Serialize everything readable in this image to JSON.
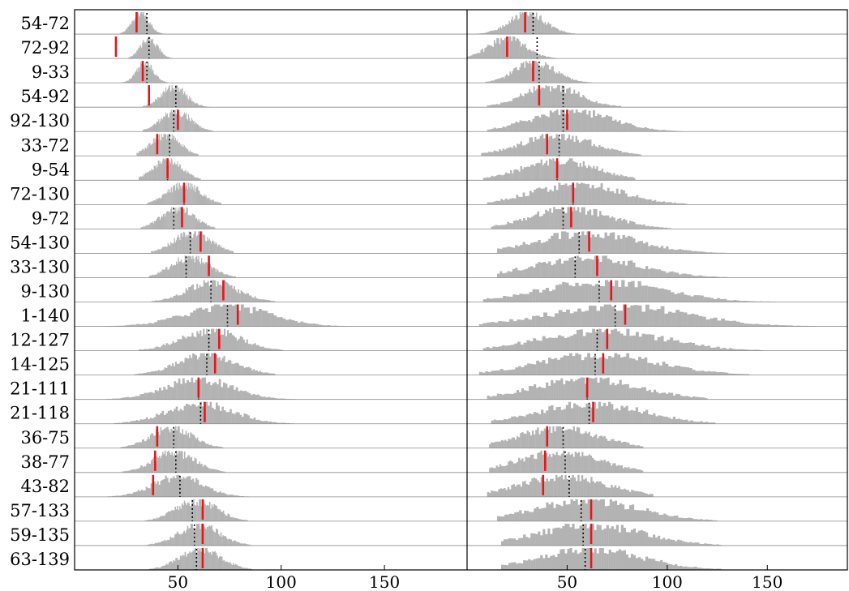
{
  "chart_data": {
    "type": "histogram-ridgeline",
    "row_labels": [
      "54-72",
      "72-92",
      "9-33",
      "54-92",
      "92-130",
      "33-72",
      "9-54",
      "72-130",
      "9-72",
      "54-130",
      "33-130",
      "9-130",
      "1-140",
      "12-127",
      "14-125",
      "21-111",
      "21-118",
      "36-75",
      "38-77",
      "43-82",
      "57-133",
      "59-135",
      "63-139"
    ],
    "xticks": [
      50,
      100,
      150
    ],
    "xlim": [
      0,
      190
    ],
    "panels": [
      {
        "rows": [
          {
            "label": "54-72",
            "center": 32,
            "spread": 4,
            "left": 10,
            "right": 15,
            "dotted": 35,
            "red": 30
          },
          {
            "label": "72-92",
            "center": 36,
            "spread": 4,
            "left": 10,
            "right": 15,
            "dotted": 36,
            "red": 20
          },
          {
            "label": "9-33",
            "center": 34,
            "spread": 4,
            "left": 12,
            "right": 14,
            "dotted": 35,
            "red": 33
          },
          {
            "label": "54-92",
            "center": 48,
            "spread": 6,
            "left": 15,
            "right": 18,
            "dotted": 49,
            "red": 36
          },
          {
            "label": "92-130",
            "center": 49,
            "spread": 7,
            "left": 16,
            "right": 18,
            "dotted": 48,
            "red": 50
          },
          {
            "label": "33-72",
            "center": 44,
            "spread": 7,
            "left": 14,
            "right": 16,
            "dotted": 46,
            "red": 40
          },
          {
            "label": "9-54",
            "center": 45,
            "spread": 7,
            "left": 14,
            "right": 16,
            "dotted": 45,
            "red": 45
          },
          {
            "label": "72-130",
            "center": 53,
            "spread": 8,
            "left": 18,
            "right": 18,
            "dotted": 53,
            "red": 53
          },
          {
            "label": "9-72",
            "center": 50,
            "spread": 8,
            "left": 18,
            "right": 18,
            "dotted": 48,
            "red": 52
          },
          {
            "label": "54-130",
            "center": 57,
            "spread": 9,
            "left": 20,
            "right": 20,
            "dotted": 56,
            "red": 61
          },
          {
            "label": "33-130",
            "center": 56,
            "spread": 9,
            "left": 20,
            "right": 22,
            "dotted": 54,
            "red": 65
          },
          {
            "label": "9-130",
            "center": 67,
            "spread": 12,
            "left": 30,
            "right": 30,
            "dotted": 66,
            "red": 72
          },
          {
            "label": "1-140",
            "center": 74,
            "spread": 20,
            "left": 60,
            "right": 70,
            "dotted": 74,
            "red": 79
          },
          {
            "label": "12-127",
            "center": 66,
            "spread": 14,
            "left": 35,
            "right": 35,
            "dotted": 65,
            "red": 70
          },
          {
            "label": "14-125",
            "center": 64,
            "spread": 14,
            "left": 35,
            "right": 33,
            "dotted": 64,
            "red": 68
          },
          {
            "label": "21-111",
            "center": 60,
            "spread": 16,
            "left": 45,
            "right": 48,
            "dotted": 60,
            "red": 60
          },
          {
            "label": "21-118",
            "center": 61,
            "spread": 16,
            "left": 42,
            "right": 45,
            "dotted": 61,
            "red": 63
          },
          {
            "label": "36-75",
            "center": 47,
            "spread": 10,
            "left": 25,
            "right": 25,
            "dotted": 48,
            "red": 40
          },
          {
            "label": "38-77",
            "center": 48,
            "spread": 10,
            "left": 25,
            "right": 25,
            "dotted": 49,
            "red": 39
          },
          {
            "label": "43-82",
            "center": 50,
            "spread": 12,
            "left": 35,
            "right": 35,
            "dotted": 51,
            "red": 38
          },
          {
            "label": "57-133",
            "center": 59,
            "spread": 10,
            "left": 25,
            "right": 25,
            "dotted": 57,
            "red": 62
          },
          {
            "label": "59-135",
            "center": 60,
            "spread": 10,
            "left": 25,
            "right": 25,
            "dotted": 58,
            "red": 62
          },
          {
            "label": "63-139",
            "center": 61,
            "spread": 10,
            "left": 25,
            "right": 25,
            "dotted": 59,
            "red": 62
          }
        ]
      },
      {
        "rows": [
          {
            "label": "54-72",
            "center": 30,
            "spread": 9,
            "left": 25,
            "right": 24,
            "dotted": 33,
            "red": 29
          },
          {
            "label": "72-92",
            "center": 20,
            "spread": 9,
            "left": 20,
            "right": 40,
            "dotted": 35,
            "red": 20
          },
          {
            "label": "9-33",
            "center": 34,
            "spread": 10,
            "left": 25,
            "right": 30,
            "dotted": 36,
            "red": 33
          },
          {
            "label": "54-92",
            "center": 42,
            "spread": 14,
            "left": 32,
            "right": 35,
            "dotted": 48,
            "red": 36
          },
          {
            "label": "92-130",
            "center": 52,
            "spread": 20,
            "left": 42,
            "right": 55,
            "dotted": 48,
            "red": 50
          },
          {
            "label": "33-72",
            "center": 45,
            "spread": 18,
            "left": 38,
            "right": 42,
            "dotted": 46,
            "red": 40
          },
          {
            "label": "9-54",
            "center": 46,
            "spread": 18,
            "left": 38,
            "right": 38,
            "dotted": 45,
            "red": 45
          },
          {
            "label": "72-130",
            "center": 55,
            "spread": 22,
            "left": 45,
            "right": 55,
            "dotted": 53,
            "red": 53
          },
          {
            "label": "9-72",
            "center": 52,
            "spread": 20,
            "left": 40,
            "right": 50,
            "dotted": 48,
            "red": 52
          },
          {
            "label": "54-130",
            "center": 60,
            "spread": 25,
            "left": 45,
            "right": 70,
            "dotted": 56,
            "red": 61
          },
          {
            "label": "33-130",
            "center": 60,
            "spread": 26,
            "left": 45,
            "right": 70,
            "dotted": 54,
            "red": 65
          },
          {
            "label": "9-130",
            "center": 68,
            "spread": 30,
            "left": 60,
            "right": 88,
            "dotted": 66,
            "red": 72
          },
          {
            "label": "1-140",
            "center": 76,
            "spread": 34,
            "left": 70,
            "right": 100,
            "dotted": 74,
            "red": 79
          },
          {
            "label": "12-127",
            "center": 68,
            "spread": 30,
            "left": 60,
            "right": 80,
            "dotted": 65,
            "red": 70
          },
          {
            "label": "14-125",
            "center": 66,
            "spread": 30,
            "left": 60,
            "right": 75,
            "dotted": 64,
            "red": 68
          },
          {
            "label": "21-111",
            "center": 60,
            "spread": 26,
            "left": 50,
            "right": 60,
            "dotted": 60,
            "red": 60
          },
          {
            "label": "21-118",
            "center": 62,
            "spread": 26,
            "left": 50,
            "right": 62,
            "dotted": 61,
            "red": 63
          },
          {
            "label": "36-75",
            "center": 46,
            "spread": 20,
            "left": 35,
            "right": 42,
            "dotted": 48,
            "red": 40
          },
          {
            "label": "38-77",
            "center": 46,
            "spread": 20,
            "left": 35,
            "right": 42,
            "dotted": 49,
            "red": 39
          },
          {
            "label": "43-82",
            "center": 48,
            "spread": 22,
            "left": 38,
            "right": 45,
            "dotted": 51,
            "red": 38
          },
          {
            "label": "57-133",
            "center": 60,
            "spread": 26,
            "left": 45,
            "right": 65,
            "dotted": 57,
            "red": 62
          },
          {
            "label": "59-135",
            "center": 62,
            "spread": 26,
            "left": 45,
            "right": 65,
            "dotted": 58,
            "red": 62
          },
          {
            "label": "63-139",
            "center": 62,
            "spread": 26,
            "left": 45,
            "right": 65,
            "dotted": 59,
            "red": 62
          }
        ]
      }
    ]
  }
}
